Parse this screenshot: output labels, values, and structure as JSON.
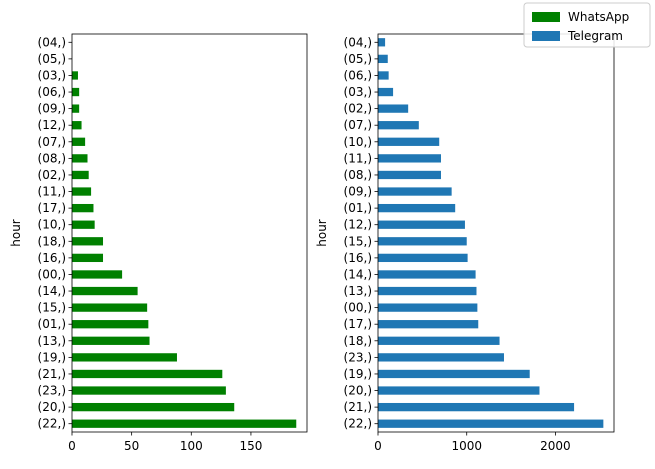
{
  "legend": {
    "placement": "top-right",
    "entries": [
      {
        "label": "WhatsApp",
        "color": "#008000"
      },
      {
        "label": "Telegram",
        "color": "#1f77b4"
      }
    ]
  },
  "chart_data": [
    {
      "type": "bar",
      "orientation": "horizontal",
      "series_name": "WhatsApp",
      "color": "#008000",
      "ylabel": "hour",
      "xlabel": "",
      "xlim": [
        0,
        197
      ],
      "xticks": [
        0,
        50,
        100,
        150
      ],
      "categories": [
        "(22,)",
        "(20,)",
        "(23,)",
        "(21,)",
        "(19,)",
        "(13,)",
        "(01,)",
        "(15,)",
        "(14,)",
        "(00,)",
        "(16,)",
        "(18,)",
        "(10,)",
        "(17,)",
        "(11,)",
        "(02,)",
        "(08,)",
        "(07,)",
        "(12,)",
        "(09,)",
        "(06,)",
        "(03,)",
        "(05,)",
        "(04,)"
      ],
      "values": [
        188,
        136,
        129,
        126,
        88,
        65,
        64,
        63,
        55,
        42,
        26,
        26,
        19,
        18,
        16,
        14,
        13,
        11,
        8,
        6,
        6,
        5,
        0,
        0
      ]
    },
    {
      "type": "bar",
      "orientation": "horizontal",
      "series_name": "Telegram",
      "color": "#1f77b4",
      "ylabel": "hour",
      "xlabel": "",
      "xlim": [
        0,
        2660
      ],
      "xticks": [
        0,
        1000,
        2000
      ],
      "categories": [
        "(22,)",
        "(21,)",
        "(20,)",
        "(19,)",
        "(23,)",
        "(18,)",
        "(17,)",
        "(00,)",
        "(13,)",
        "(14,)",
        "(16,)",
        "(15,)",
        "(12,)",
        "(01,)",
        "(09,)",
        "(08,)",
        "(11,)",
        "(10,)",
        "(07,)",
        "(02,)",
        "(03,)",
        "(06,)",
        "(05,)",
        "(04,)"
      ],
      "values": [
        2540,
        2210,
        1820,
        1710,
        1420,
        1370,
        1130,
        1120,
        1110,
        1100,
        1010,
        1000,
        980,
        870,
        830,
        710,
        710,
        690,
        460,
        340,
        170,
        120,
        110,
        80
      ]
    }
  ]
}
